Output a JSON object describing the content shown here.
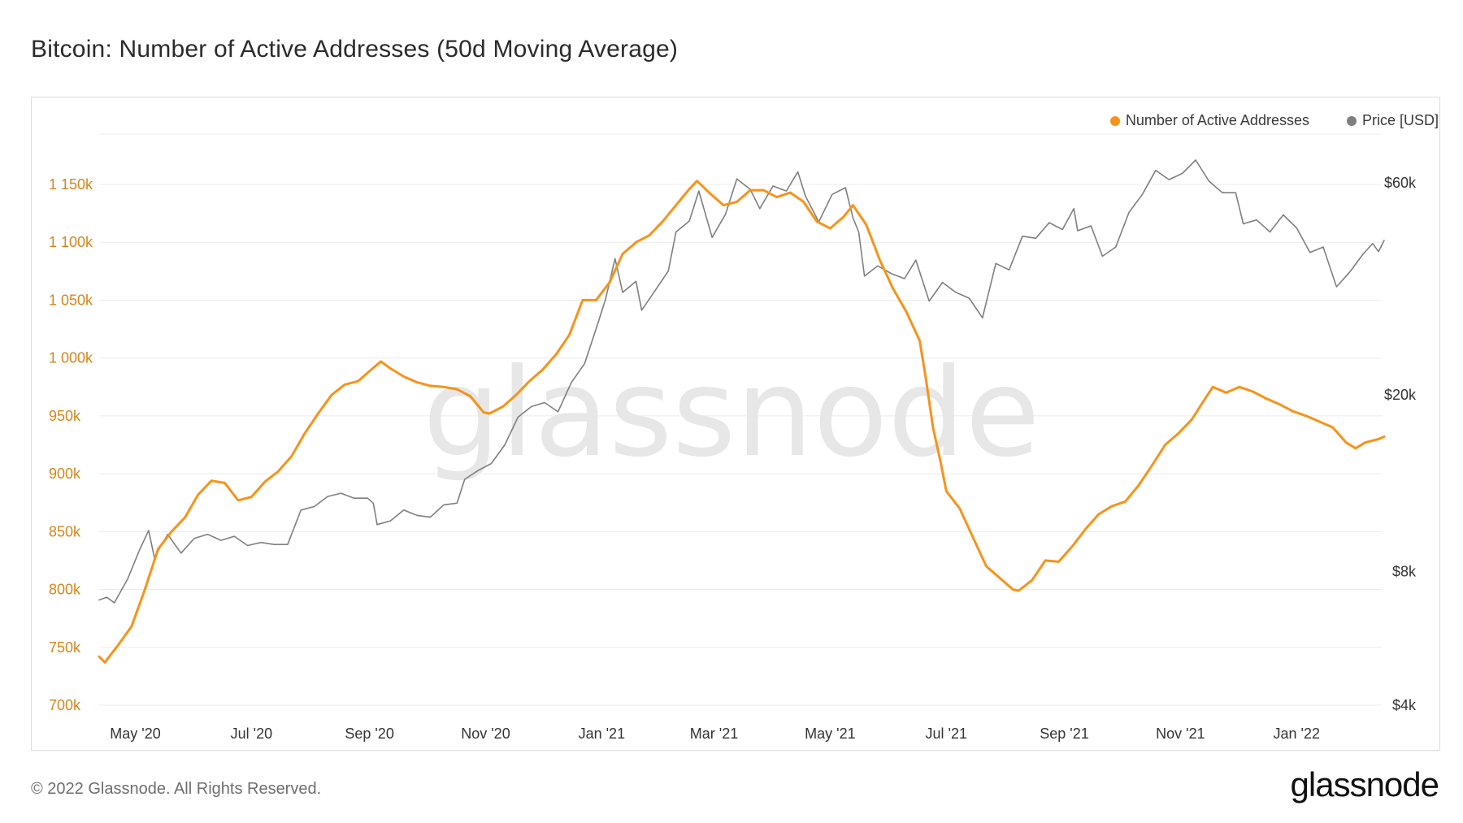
{
  "title": "Bitcoin: Number of Active Addresses (50d Moving Average)",
  "footer": {
    "copyright": "© 2022 Glassnode. All Rights Reserved.",
    "logo": "glassnode"
  },
  "watermark": "glassnode",
  "legend": [
    {
      "label": "Number of Active Addresses",
      "color": "#f7931a"
    },
    {
      "label": "Price [USD]",
      "color": "#7f7f7f"
    }
  ],
  "chart_data": {
    "type": "line",
    "x_ticks": [
      "May '20",
      "Jul '20",
      "Sep '20",
      "Nov '20",
      "Jan '21",
      "Mar '21",
      "May '21",
      "Jul '21",
      "Sep '21",
      "Nov '21",
      "Jan '22"
    ],
    "left_axis": {
      "ticks": [
        "700k",
        "750k",
        "800k",
        "850k",
        "900k",
        "950k",
        "1 000k",
        "1 050k",
        "1 100k",
        "1 150k"
      ],
      "range": [
        700000,
        1150000
      ],
      "color": "#d4861c"
    },
    "right_axis": {
      "scale": "log",
      "ticks": [
        "$4k",
        "$8k",
        "$20k",
        "$60k"
      ],
      "color": "#333333"
    },
    "grid": true,
    "legend_position": "top-right",
    "series": [
      {
        "name": "Number of Active Addresses",
        "axis": "left",
        "color": "#f7931a",
        "points": [
          [
            "2020-04-12",
            742000
          ],
          [
            "2020-04-15",
            737000
          ],
          [
            "2020-04-22",
            752000
          ],
          [
            "2020-04-29",
            768000
          ],
          [
            "2020-05-06",
            800000
          ],
          [
            "2020-05-13",
            835000
          ],
          [
            "2020-05-20",
            850000
          ],
          [
            "2020-05-27",
            862000
          ],
          [
            "2020-06-03",
            882000
          ],
          [
            "2020-06-10",
            894000
          ],
          [
            "2020-06-17",
            892000
          ],
          [
            "2020-06-24",
            877000
          ],
          [
            "2020-07-01",
            880000
          ],
          [
            "2020-07-08",
            893000
          ],
          [
            "2020-07-15",
            902000
          ],
          [
            "2020-07-22",
            915000
          ],
          [
            "2020-07-29",
            935000
          ],
          [
            "2020-08-05",
            952000
          ],
          [
            "2020-08-12",
            968000
          ],
          [
            "2020-08-19",
            977000
          ],
          [
            "2020-08-26",
            980000
          ],
          [
            "2020-09-02",
            990000
          ],
          [
            "2020-09-07",
            997000
          ],
          [
            "2020-09-12",
            991000
          ],
          [
            "2020-09-19",
            984000
          ],
          [
            "2020-09-26",
            979000
          ],
          [
            "2020-10-03",
            976000
          ],
          [
            "2020-10-10",
            975000
          ],
          [
            "2020-10-17",
            973000
          ],
          [
            "2020-10-24",
            967000
          ],
          [
            "2020-10-31",
            953000
          ],
          [
            "2020-11-03",
            952000
          ],
          [
            "2020-11-10",
            958000
          ],
          [
            "2020-11-17",
            968000
          ],
          [
            "2020-11-24",
            980000
          ],
          [
            "2020-12-01",
            990000
          ],
          [
            "2020-12-08",
            1003000
          ],
          [
            "2020-12-15",
            1020000
          ],
          [
            "2020-12-22",
            1050000
          ],
          [
            "2020-12-29",
            1050000
          ],
          [
            "2021-01-05",
            1065000
          ],
          [
            "2021-01-12",
            1090000
          ],
          [
            "2021-01-19",
            1100000
          ],
          [
            "2021-01-26",
            1106000
          ],
          [
            "2021-02-02",
            1118000
          ],
          [
            "2021-02-09",
            1132000
          ],
          [
            "2021-02-16",
            1146000
          ],
          [
            "2021-02-20",
            1153000
          ],
          [
            "2021-02-27",
            1142000
          ],
          [
            "2021-03-06",
            1132000
          ],
          [
            "2021-03-13",
            1135000
          ],
          [
            "2021-03-20",
            1145000
          ],
          [
            "2021-03-27",
            1145000
          ],
          [
            "2021-04-03",
            1139000
          ],
          [
            "2021-04-10",
            1143000
          ],
          [
            "2021-04-17",
            1135000
          ],
          [
            "2021-04-24",
            1118000
          ],
          [
            "2021-05-01",
            1112000
          ],
          [
            "2021-05-08",
            1122000
          ],
          [
            "2021-05-13",
            1132000
          ],
          [
            "2021-05-20",
            1115000
          ],
          [
            "2021-05-27",
            1085000
          ],
          [
            "2021-06-03",
            1060000
          ],
          [
            "2021-06-10",
            1040000
          ],
          [
            "2021-06-17",
            1015000
          ],
          [
            "2021-06-20",
            985000
          ],
          [
            "2021-06-24",
            940000
          ],
          [
            "2021-06-28",
            910000
          ],
          [
            "2021-07-01",
            885000
          ],
          [
            "2021-07-08",
            870000
          ],
          [
            "2021-07-15",
            845000
          ],
          [
            "2021-07-22",
            820000
          ],
          [
            "2021-07-29",
            810000
          ],
          [
            "2021-08-05",
            800000
          ],
          [
            "2021-08-08",
            799000
          ],
          [
            "2021-08-15",
            808000
          ],
          [
            "2021-08-22",
            825000
          ],
          [
            "2021-08-29",
            824000
          ],
          [
            "2021-09-05",
            837000
          ],
          [
            "2021-09-12",
            852000
          ],
          [
            "2021-09-19",
            865000
          ],
          [
            "2021-09-26",
            872000
          ],
          [
            "2021-10-03",
            876000
          ],
          [
            "2021-10-10",
            890000
          ],
          [
            "2021-10-17",
            907000
          ],
          [
            "2021-10-24",
            925000
          ],
          [
            "2021-10-31",
            935000
          ],
          [
            "2021-11-07",
            947000
          ],
          [
            "2021-11-14",
            965000
          ],
          [
            "2021-11-18",
            975000
          ],
          [
            "2021-11-25",
            970000
          ],
          [
            "2021-12-02",
            975000
          ],
          [
            "2021-12-09",
            971000
          ],
          [
            "2021-12-16",
            965000
          ],
          [
            "2021-12-23",
            960000
          ],
          [
            "2021-12-30",
            954000
          ],
          [
            "2022-01-06",
            950000
          ],
          [
            "2022-01-13",
            945000
          ],
          [
            "2022-01-20",
            940000
          ],
          [
            "2022-01-27",
            927000
          ],
          [
            "2022-02-01",
            922000
          ],
          [
            "2022-02-06",
            927000
          ],
          [
            "2022-02-13",
            930000
          ],
          [
            "2022-02-16",
            932000
          ]
        ]
      },
      {
        "name": "Price [USD]",
        "axis": "right",
        "color": "#7f7f7f",
        "points": [
          [
            "2020-04-12",
            6900
          ],
          [
            "2020-04-16",
            7000
          ],
          [
            "2020-04-20",
            6800
          ],
          [
            "2020-04-27",
            7700
          ],
          [
            "2020-05-03",
            8900
          ],
          [
            "2020-05-08",
            9900
          ],
          [
            "2020-05-11",
            8600
          ],
          [
            "2020-05-18",
            9700
          ],
          [
            "2020-05-25",
            8800
          ],
          [
            "2020-06-01",
            9500
          ],
          [
            "2020-06-08",
            9700
          ],
          [
            "2020-06-15",
            9400
          ],
          [
            "2020-06-22",
            9600
          ],
          [
            "2020-06-29",
            9150
          ],
          [
            "2020-07-06",
            9300
          ],
          [
            "2020-07-13",
            9200
          ],
          [
            "2020-07-20",
            9200
          ],
          [
            "2020-07-27",
            11000
          ],
          [
            "2020-08-03",
            11200
          ],
          [
            "2020-08-10",
            11800
          ],
          [
            "2020-08-17",
            12000
          ],
          [
            "2020-08-24",
            11700
          ],
          [
            "2020-08-31",
            11700
          ],
          [
            "2020-09-03",
            11400
          ],
          [
            "2020-09-05",
            10200
          ],
          [
            "2020-09-12",
            10400
          ],
          [
            "2020-09-19",
            11000
          ],
          [
            "2020-09-26",
            10700
          ],
          [
            "2020-10-03",
            10600
          ],
          [
            "2020-10-10",
            11300
          ],
          [
            "2020-10-17",
            11400
          ],
          [
            "2020-10-21",
            12900
          ],
          [
            "2020-10-28",
            13500
          ],
          [
            "2020-11-04",
            14000
          ],
          [
            "2020-11-11",
            15400
          ],
          [
            "2020-11-18",
            17800
          ],
          [
            "2020-11-25",
            18800
          ],
          [
            "2020-12-02",
            19200
          ],
          [
            "2020-12-09",
            18300
          ],
          [
            "2020-12-16",
            21300
          ],
          [
            "2020-12-23",
            23500
          ],
          [
            "2020-12-30",
            29000
          ],
          [
            "2021-01-03",
            32800
          ],
          [
            "2021-01-08",
            40500
          ],
          [
            "2021-01-12",
            34000
          ],
          [
            "2021-01-19",
            36000
          ],
          [
            "2021-01-22",
            31000
          ],
          [
            "2021-01-29",
            34300
          ],
          [
            "2021-02-05",
            38000
          ],
          [
            "2021-02-09",
            46500
          ],
          [
            "2021-02-16",
            49200
          ],
          [
            "2021-02-21",
            57500
          ],
          [
            "2021-02-28",
            45200
          ],
          [
            "2021-03-07",
            51000
          ],
          [
            "2021-03-13",
            61200
          ],
          [
            "2021-03-20",
            58000
          ],
          [
            "2021-03-25",
            52500
          ],
          [
            "2021-04-01",
            59000
          ],
          [
            "2021-04-08",
            57500
          ],
          [
            "2021-04-14",
            63500
          ],
          [
            "2021-04-18",
            56000
          ],
          [
            "2021-04-25",
            49000
          ],
          [
            "2021-05-02",
            56500
          ],
          [
            "2021-05-09",
            58500
          ],
          [
            "2021-05-13",
            50000
          ],
          [
            "2021-05-16",
            46500
          ],
          [
            "2021-05-19",
            37000
          ],
          [
            "2021-05-26",
            39000
          ],
          [
            "2021-06-02",
            37500
          ],
          [
            "2021-06-09",
            36500
          ],
          [
            "2021-06-15",
            40200
          ],
          [
            "2021-06-22",
            32500
          ],
          [
            "2021-06-29",
            35800
          ],
          [
            "2021-07-06",
            34000
          ],
          [
            "2021-07-13",
            33000
          ],
          [
            "2021-07-20",
            29800
          ],
          [
            "2021-07-27",
            39500
          ],
          [
            "2021-08-03",
            38200
          ],
          [
            "2021-08-10",
            45500
          ],
          [
            "2021-08-17",
            45000
          ],
          [
            "2021-08-24",
            48800
          ],
          [
            "2021-08-31",
            47100
          ],
          [
            "2021-09-06",
            52500
          ],
          [
            "2021-09-08",
            46800
          ],
          [
            "2021-09-15",
            48000
          ],
          [
            "2021-09-21",
            41000
          ],
          [
            "2021-09-28",
            43000
          ],
          [
            "2021-10-05",
            51500
          ],
          [
            "2021-10-12",
            56500
          ],
          [
            "2021-10-19",
            64000
          ],
          [
            "2021-10-26",
            61000
          ],
          [
            "2021-11-02",
            63000
          ],
          [
            "2021-11-09",
            67500
          ],
          [
            "2021-11-16",
            60500
          ],
          [
            "2021-11-23",
            57000
          ],
          [
            "2021-11-30",
            57000
          ],
          [
            "2021-12-04",
            48500
          ],
          [
            "2021-12-11",
            49500
          ],
          [
            "2021-12-18",
            46500
          ],
          [
            "2021-12-25",
            50800
          ],
          [
            "2022-01-01",
            47500
          ],
          [
            "2022-01-08",
            41800
          ],
          [
            "2022-01-15",
            43000
          ],
          [
            "2022-01-22",
            35000
          ],
          [
            "2022-01-29",
            37800
          ],
          [
            "2022-02-05",
            41500
          ],
          [
            "2022-02-10",
            43800
          ],
          [
            "2022-02-13",
            42000
          ],
          [
            "2022-02-16",
            44500
          ]
        ]
      }
    ]
  }
}
